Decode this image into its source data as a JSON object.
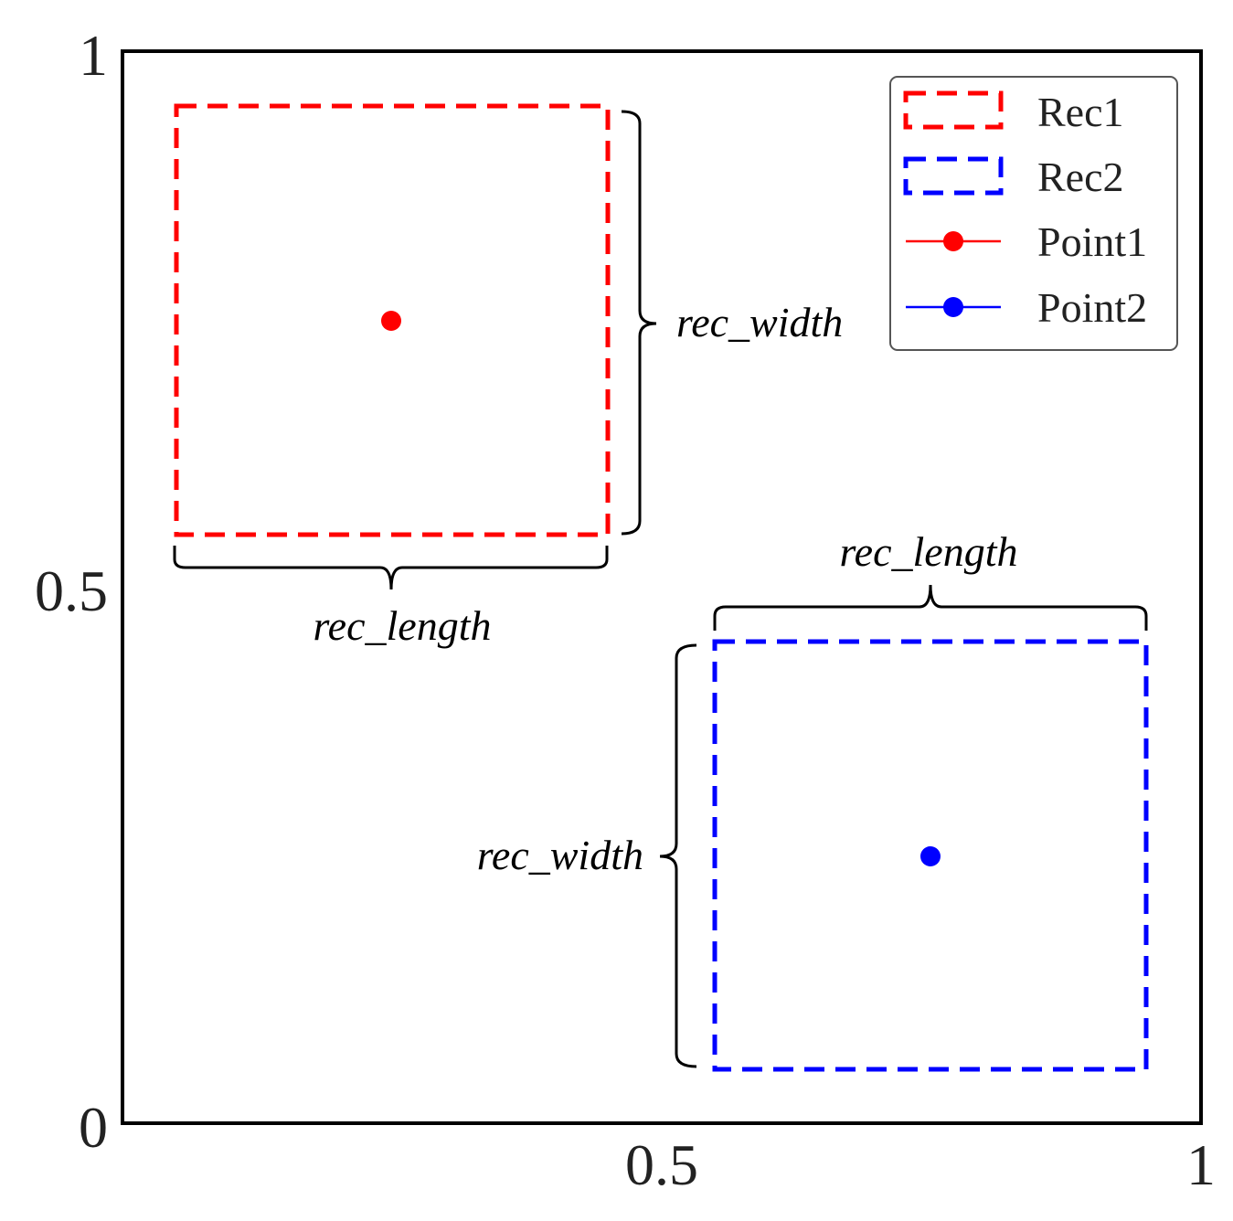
{
  "chart_data": {
    "type": "scatter",
    "xlim": [
      0,
      1
    ],
    "ylim": [
      0,
      1
    ],
    "x_ticks": [
      "0.5",
      "1"
    ],
    "y_ticks": [
      "0",
      "0.5",
      "1"
    ],
    "grid": false,
    "legend_placement": "top-right",
    "legend": [
      {
        "label": "Rec1",
        "kind": "dashed-rect",
        "color": "#ff0000"
      },
      {
        "label": "Rec2",
        "kind": "dashed-rect",
        "color": "#0000ff"
      },
      {
        "label": "Point1",
        "kind": "line-marker",
        "color": "#ff0000"
      },
      {
        "label": "Point2",
        "kind": "line-marker",
        "color": "#0000ff"
      }
    ],
    "rectangles": [
      {
        "name": "Rec1",
        "x0": 0.05,
        "x1": 0.45,
        "y0": 0.55,
        "y1": 0.95,
        "color": "#ff0000"
      },
      {
        "name": "Rec2",
        "x0": 0.55,
        "x1": 0.95,
        "y0": 0.05,
        "y1": 0.45,
        "color": "#0000ff"
      }
    ],
    "points": [
      {
        "name": "Point1",
        "x": 0.25,
        "y": 0.75,
        "color": "#ff0000"
      },
      {
        "name": "Point2",
        "x": 0.75,
        "y": 0.25,
        "color": "#0000ff"
      }
    ],
    "annotations": {
      "rec1_width": "rec_width",
      "rec1_length": "rec_length",
      "rec2_width": "rec_width",
      "rec2_length": "rec_length"
    }
  }
}
